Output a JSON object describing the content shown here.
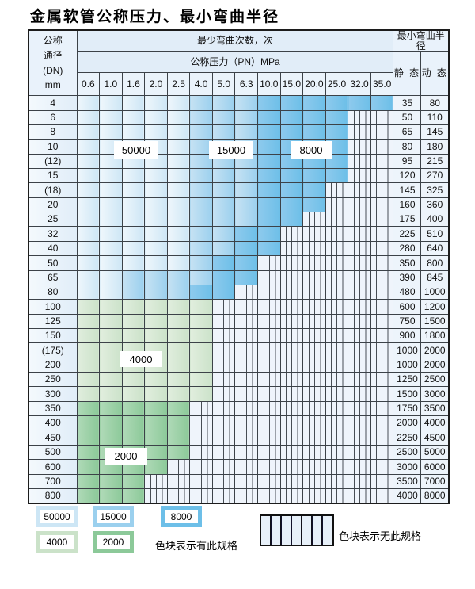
{
  "title": "金属软管公称压力、最小弯曲半径",
  "table": {
    "corner_header_lines": [
      "公称",
      "通径",
      "(DN)",
      "mm"
    ],
    "bend_cycles_header": "最少弯曲次数，次",
    "pressure_header": "公称压力（PN）MPa",
    "radius_header": "最小弯曲半径",
    "static_header": "静 态",
    "dynamic_header": "动 态",
    "pressure_columns": [
      "0.6",
      "1.0",
      "1.6",
      "2.0",
      "2.5",
      "4.0",
      "5.0",
      "6.3",
      "10.0",
      "15.0",
      "20.0",
      "25.0",
      "32.0",
      "35.0"
    ],
    "cell_legend_meaning": {
      "L": "50000",
      "M": "15000",
      "D": "8000",
      "G": "4000",
      "E": "2000",
      "H": "no-spec"
    },
    "rows": [
      {
        "dn": "4",
        "cells": "LLLLLMMMDDDDDD",
        "static": "35",
        "dynamic": "80"
      },
      {
        "dn": "6",
        "cells": "LLLLLMMMDDDDHH",
        "static": "50",
        "dynamic": "110"
      },
      {
        "dn": "8",
        "cells": "LLLLLMMMDDDDHH",
        "static": "65",
        "dynamic": "145"
      },
      {
        "dn": "10",
        "cells": "LLLLLMMMDDDDHH",
        "static": "80",
        "dynamic": "180"
      },
      {
        "dn": "(12)",
        "cells": "LLLLLMMMDDDDHH",
        "static": "95",
        "dynamic": "215"
      },
      {
        "dn": "15",
        "cells": "LLLLLMMMDDDDHH",
        "static": "120",
        "dynamic": "270"
      },
      {
        "dn": "(18)",
        "cells": "LLLLLMMMDDDHHH",
        "static": "145",
        "dynamic": "325"
      },
      {
        "dn": "20",
        "cells": "LLLLLMMMDDDHHH",
        "static": "160",
        "dynamic": "360"
      },
      {
        "dn": "25",
        "cells": "LLLLLMMMDDHHHH",
        "static": "175",
        "dynamic": "400"
      },
      {
        "dn": "32",
        "cells": "LLLLLMMDDHHHHH",
        "static": "225",
        "dynamic": "510"
      },
      {
        "dn": "40",
        "cells": "LLLLLMMDDHHHHH",
        "static": "280",
        "dynamic": "640"
      },
      {
        "dn": "50",
        "cells": "LLLLLMDDHHHHHH",
        "static": "350",
        "dynamic": "800"
      },
      {
        "dn": "65",
        "cells": "LLMMMMDDHHHHHH",
        "static": "390",
        "dynamic": "845"
      },
      {
        "dn": "80",
        "cells": "LLMMMDDHHHHHHH",
        "static": "480",
        "dynamic": "1000"
      },
      {
        "dn": "100",
        "cells": "GGGGGGHHHHHHHH",
        "static": "600",
        "dynamic": "1200"
      },
      {
        "dn": "125",
        "cells": "GGGGGGHHHHHHHH",
        "static": "750",
        "dynamic": "1500"
      },
      {
        "dn": "150",
        "cells": "GGGGGGHHHHHHHH",
        "static": "900",
        "dynamic": "1800"
      },
      {
        "dn": "(175)",
        "cells": "GGGGGGHHHHHHHH",
        "static": "1000",
        "dynamic": "2000"
      },
      {
        "dn": "200",
        "cells": "GGGGGGHHHHHHHH",
        "static": "1000",
        "dynamic": "2000"
      },
      {
        "dn": "250",
        "cells": "GGGGGGHHHHHHHH",
        "static": "1250",
        "dynamic": "2500"
      },
      {
        "dn": "300",
        "cells": "GGGGGGHHHHHHHH",
        "static": "1500",
        "dynamic": "3000"
      },
      {
        "dn": "350",
        "cells": "EEEEEHHHHHHHHH",
        "static": "1750",
        "dynamic": "3500"
      },
      {
        "dn": "400",
        "cells": "EEEEEHHHHHHHHH",
        "static": "2000",
        "dynamic": "4000"
      },
      {
        "dn": "450",
        "cells": "EEEEEHHHHHHHHH",
        "static": "2250",
        "dynamic": "4500"
      },
      {
        "dn": "500",
        "cells": "EEEEEHHHHHHHHH",
        "static": "2500",
        "dynamic": "5000"
      },
      {
        "dn": "600",
        "cells": "EEEEHHHHHHHHHH",
        "static": "3000",
        "dynamic": "6000"
      },
      {
        "dn": "700",
        "cells": "EEEHHHHHHHHHHH",
        "static": "3500",
        "dynamic": "7000"
      },
      {
        "dn": "800",
        "cells": "EEEHHHHHHHHHHH",
        "static": "4000",
        "dynamic": "8000"
      }
    ]
  },
  "overlay_labels": {
    "blue_50000": "50000",
    "blue_15000": "15000",
    "blue_8000": "8000",
    "green_4000": "4000",
    "green_2000": "2000"
  },
  "legend": {
    "sw_50000": "50000",
    "sw_15000": "15000",
    "sw_8000": "8000",
    "sw_4000": "4000",
    "sw_2000": "2000",
    "has_spec_note": "色块表示有此规格",
    "no_spec_note": "色块表示无此规格"
  },
  "colors": {
    "cycles_50000": "#cde6f5",
    "cycles_15000": "#9bd0ee",
    "cycles_8000": "#6dbfe8",
    "cycles_4000": "#cbe2c9",
    "cycles_2000": "#8cc999",
    "hatch_fill": "#eff4fb",
    "grid_line": "#3c4248",
    "header_bg": "#e1edf8"
  }
}
